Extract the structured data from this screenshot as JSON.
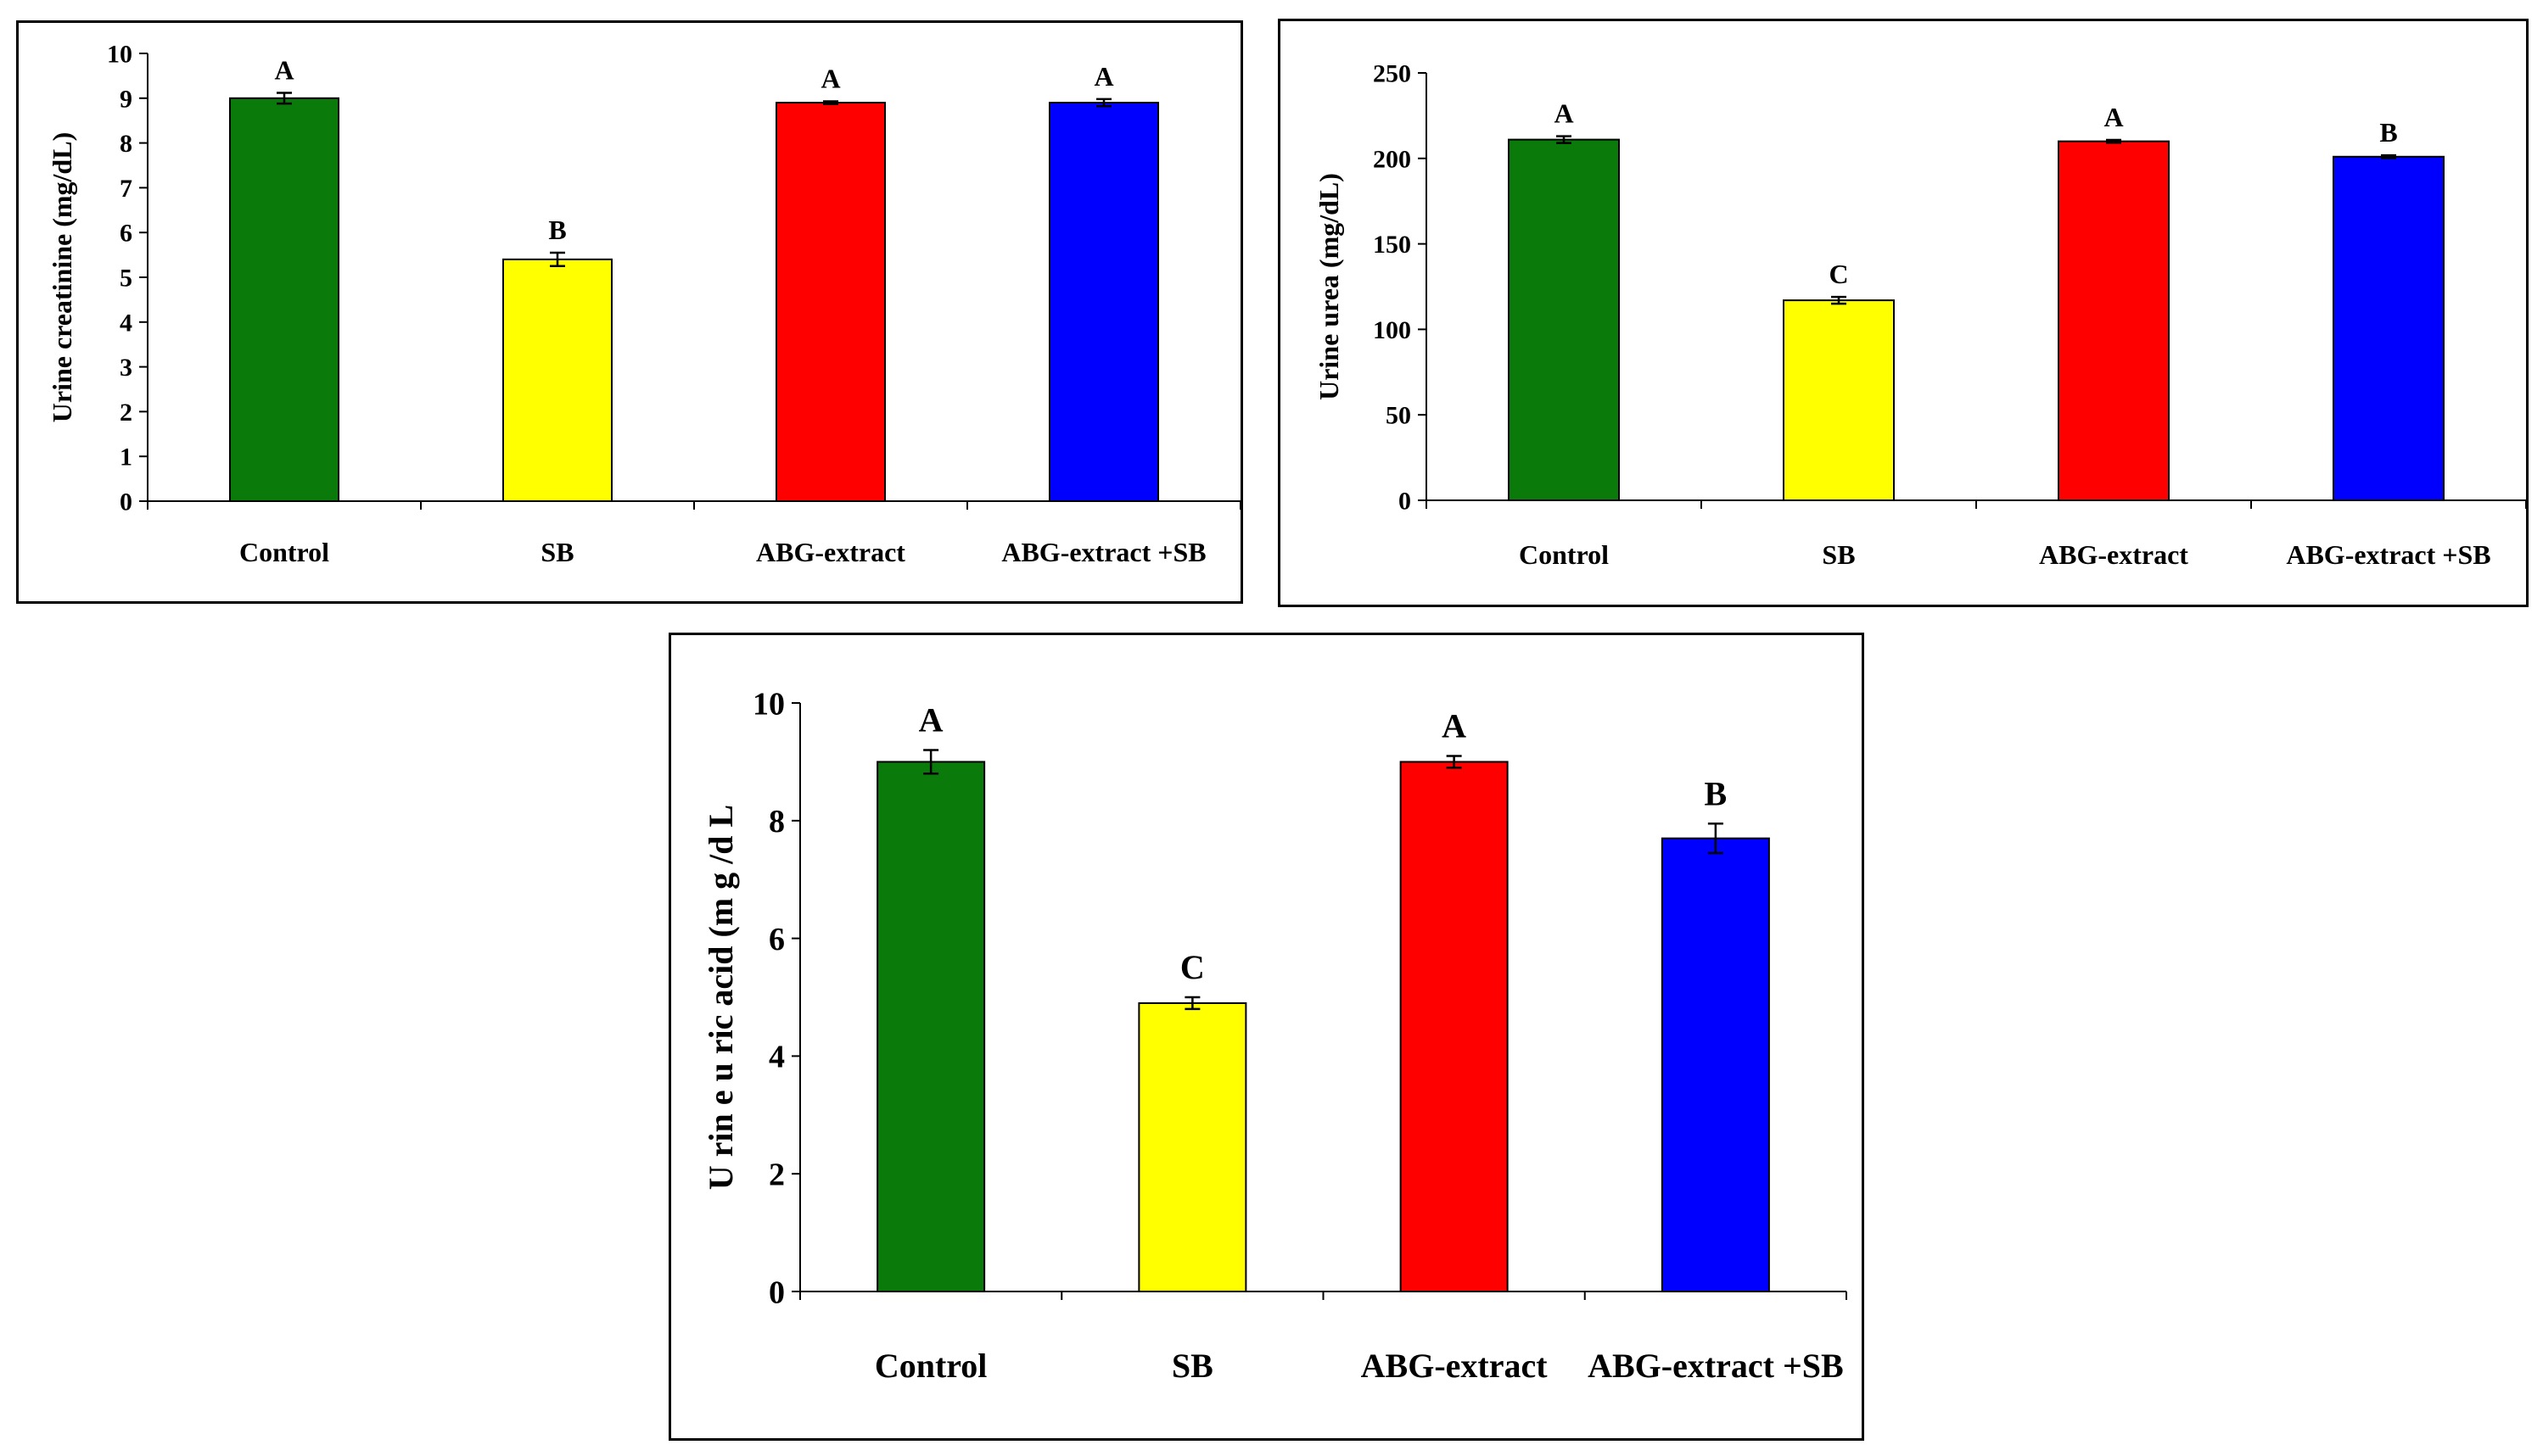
{
  "chart_data": [
    {
      "type": "bar",
      "categories": [
        "Control",
        "SB",
        "ABG-extract",
        "ABG-extract +SB"
      ],
      "values": [
        9.0,
        5.4,
        8.9,
        8.9
      ],
      "errors": [
        0.12,
        0.15,
        0.03,
        0.08
      ],
      "letters": [
        "A",
        "B",
        "A",
        "A"
      ],
      "colors": [
        "#0a7a0a",
        "#ffff00",
        "#ff0000",
        "#0000ff"
      ],
      "title": "",
      "xlabel": "",
      "ylabel": "Urine creatinine (mg/dL)",
      "ylim": [
        0,
        10
      ],
      "yticks": [
        0,
        1,
        2,
        3,
        4,
        5,
        6,
        7,
        8,
        9,
        10
      ],
      "ytick_labels": [
        "0",
        "1",
        "2",
        "3",
        "4",
        "5",
        "6",
        "7",
        "8",
        "9",
        "10"
      ],
      "grid": false
    },
    {
      "type": "bar",
      "categories": [
        "Control",
        "SB",
        "ABG-extract",
        "ABG-extract +SB"
      ],
      "values": [
        211,
        117,
        210,
        201
      ],
      "errors": [
        2.0,
        2.0,
        0.8,
        0.8
      ],
      "letters": [
        "A",
        "C",
        "A",
        "B"
      ],
      "colors": [
        "#0a7a0a",
        "#ffff00",
        "#ff0000",
        "#0000ff"
      ],
      "title": "",
      "xlabel": "",
      "ylabel": "Urine urea (mg/dL)",
      "ylim": [
        0,
        250
      ],
      "yticks": [
        0,
        50,
        100,
        150,
        200,
        250
      ],
      "ytick_labels": [
        "0",
        "50",
        "100",
        "150",
        "200",
        "250"
      ],
      "grid": false
    },
    {
      "type": "bar",
      "categories": [
        "Control",
        "SB",
        "ABG-extract",
        "ABG-extract +SB"
      ],
      "values": [
        9.0,
        4.9,
        9.0,
        7.7
      ],
      "errors": [
        0.2,
        0.1,
        0.1,
        0.25
      ],
      "letters": [
        "A",
        "C",
        "A",
        "B"
      ],
      "colors": [
        "#0a7a0a",
        "#ffff00",
        "#ff0000",
        "#0000ff"
      ],
      "title": "",
      "xlabel": "",
      "ylabel": "U rin e u ric acid (m g /d L",
      "ylim": [
        0,
        10
      ],
      "yticks": [
        0,
        2,
        4,
        6,
        8,
        10
      ],
      "ytick_labels": [
        "0",
        "2",
        "4",
        "6",
        "8",
        "10"
      ],
      "grid": false
    }
  ]
}
